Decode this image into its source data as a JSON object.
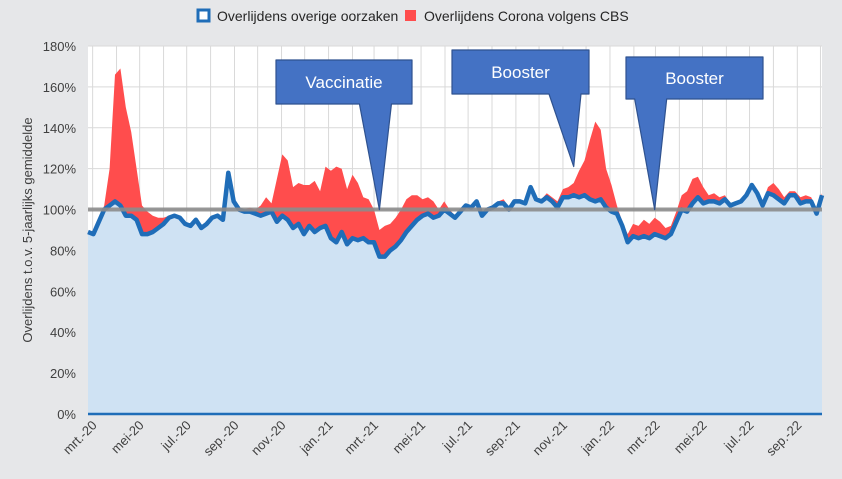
{
  "chart_data": {
    "type": "area",
    "ylabel": "Overlijdens t.o.v. 5-jaarlijks gemiddelde",
    "y_tick_labels": [
      "0%",
      "20%",
      "40%",
      "60%",
      "80%",
      "100%",
      "120%",
      "140%",
      "160%",
      "180%"
    ],
    "y_tick_values": [
      0,
      20,
      40,
      60,
      80,
      100,
      120,
      140,
      160,
      180
    ],
    "ylim": [
      0,
      180
    ],
    "y_unit": "%",
    "x_tick_labels": [
      "mrt.-20",
      "mei-20",
      "jul.-20",
      "sep.-20",
      "nov.-20",
      "jan.-21",
      "mrt.-21",
      "mei-21",
      "jul.-21",
      "sep.-21",
      "nov.-21",
      "jan.-22",
      "mrt.-22",
      "mei-22",
      "jul.-22",
      "sep.-22"
    ],
    "xlim": [
      "2020-02-24",
      "2022-10-03"
    ],
    "reference_line": 100,
    "grid": true,
    "legend_position": "top",
    "colors": {
      "other_causes_line": "#1f6db8",
      "other_causes_fill": "#cfe2f3",
      "corona_fill": "#ff4d4d",
      "reference_line": "#8c8c8c",
      "plot_background": "#ffffff",
      "page_background": "#e6e7e9",
      "callout_fill": "#4472c4",
      "gridline": "#d9d9d9"
    },
    "series": [
      {
        "name": "Overlijdens overige oorzaken",
        "style": "line with light-blue area",
        "x": [
          "2020-02-24",
          "2020-03-02",
          "2020-03-09",
          "2020-03-16",
          "2020-03-23",
          "2020-03-30",
          "2020-04-06",
          "2020-04-13",
          "2020-04-20",
          "2020-04-27",
          "2020-05-04",
          "2020-05-11",
          "2020-05-18",
          "2020-05-25",
          "2020-06-01",
          "2020-06-08",
          "2020-06-15",
          "2020-06-22",
          "2020-06-29",
          "2020-07-06",
          "2020-07-13",
          "2020-07-20",
          "2020-07-27",
          "2020-08-03",
          "2020-08-10",
          "2020-08-17",
          "2020-08-24",
          "2020-08-31",
          "2020-09-07",
          "2020-09-14",
          "2020-09-21",
          "2020-09-28",
          "2020-10-05",
          "2020-10-12",
          "2020-10-19",
          "2020-10-26",
          "2020-11-02",
          "2020-11-09",
          "2020-11-16",
          "2020-11-23",
          "2020-11-30",
          "2020-12-07",
          "2020-12-14",
          "2020-12-21",
          "2020-12-28",
          "2021-01-04",
          "2021-01-11",
          "2021-01-18",
          "2021-01-25",
          "2021-02-01",
          "2021-02-08",
          "2021-02-15",
          "2021-02-22",
          "2021-03-01",
          "2021-03-08",
          "2021-03-15",
          "2021-03-22",
          "2021-03-29",
          "2021-04-05",
          "2021-04-12",
          "2021-04-19",
          "2021-04-26",
          "2021-05-03",
          "2021-05-10",
          "2021-05-17",
          "2021-05-24",
          "2021-05-31",
          "2021-06-07",
          "2021-06-14",
          "2021-06-21",
          "2021-06-28",
          "2021-07-05",
          "2021-07-12",
          "2021-07-19",
          "2021-07-26",
          "2021-08-02",
          "2021-08-09",
          "2021-08-16",
          "2021-08-23",
          "2021-08-30",
          "2021-09-06",
          "2021-09-13",
          "2021-09-20",
          "2021-09-27",
          "2021-10-04",
          "2021-10-11",
          "2021-10-18",
          "2021-10-25",
          "2021-11-01",
          "2021-11-08",
          "2021-11-15",
          "2021-11-22",
          "2021-11-29",
          "2021-12-06",
          "2021-12-13",
          "2021-12-20",
          "2021-12-27",
          "2022-01-03",
          "2022-01-10",
          "2022-01-17",
          "2022-01-24",
          "2022-01-31",
          "2022-02-07",
          "2022-02-14",
          "2022-02-21",
          "2022-02-28",
          "2022-03-07",
          "2022-03-14",
          "2022-03-21",
          "2022-03-28",
          "2022-04-04",
          "2022-04-11",
          "2022-04-18",
          "2022-04-25",
          "2022-05-02",
          "2022-05-09",
          "2022-05-16",
          "2022-05-23",
          "2022-05-30",
          "2022-06-06",
          "2022-06-13",
          "2022-06-20",
          "2022-06-27",
          "2022-07-04",
          "2022-07-11",
          "2022-07-18",
          "2022-07-25",
          "2022-08-01",
          "2022-08-08",
          "2022-08-15",
          "2022-08-22",
          "2022-08-29",
          "2022-09-05",
          "2022-09-12",
          "2022-09-19",
          "2022-09-26",
          "2022-10-03"
        ],
        "values": [
          89,
          88,
          94,
          100,
          102,
          104,
          102,
          97,
          97,
          95,
          88,
          88,
          89,
          91,
          93,
          96,
          97,
          96,
          93,
          92,
          95,
          91,
          93,
          96,
          97,
          95,
          118,
          104,
          100,
          99,
          99,
          98,
          97,
          98,
          99,
          94,
          97,
          95,
          91,
          93,
          88,
          92,
          89,
          91,
          92,
          86,
          84,
          89,
          83,
          86,
          85,
          86,
          84,
          84,
          77,
          77,
          80,
          82,
          85,
          89,
          92,
          95,
          97,
          98,
          96,
          97,
          100,
          98,
          96,
          99,
          102,
          101,
          104,
          97,
          100,
          101,
          103,
          103,
          100,
          104,
          104,
          103,
          111,
          105,
          104,
          106,
          104,
          101,
          106,
          106,
          107,
          106,
          107,
          105,
          104,
          105,
          101,
          99,
          98,
          92,
          84,
          87,
          86,
          87,
          86,
          88,
          87,
          86,
          88,
          94,
          100,
          99,
          103,
          106,
          103,
          104,
          104,
          103,
          105,
          102,
          103,
          104,
          107,
          112,
          108,
          102,
          108,
          107,
          105,
          103,
          107,
          107,
          103,
          104,
          104,
          98,
          107
        ]
      },
      {
        "name": "Overlijdens Corona volgens CBS",
        "style": "red area stacked on other causes",
        "x": [
          "2020-02-24",
          "2020-03-02",
          "2020-03-09",
          "2020-03-16",
          "2020-03-23",
          "2020-03-30",
          "2020-04-06",
          "2020-04-13",
          "2020-04-20",
          "2020-04-27",
          "2020-05-04",
          "2020-05-11",
          "2020-05-18",
          "2020-05-25",
          "2020-06-01",
          "2020-06-08",
          "2020-06-15",
          "2020-06-22",
          "2020-06-29",
          "2020-07-06",
          "2020-07-13",
          "2020-07-20",
          "2020-07-27",
          "2020-08-03",
          "2020-08-10",
          "2020-08-17",
          "2020-08-24",
          "2020-08-31",
          "2020-09-07",
          "2020-09-14",
          "2020-09-21",
          "2020-09-28",
          "2020-10-05",
          "2020-10-12",
          "2020-10-19",
          "2020-10-26",
          "2020-11-02",
          "2020-11-09",
          "2020-11-16",
          "2020-11-23",
          "2020-11-30",
          "2020-12-07",
          "2020-12-14",
          "2020-12-21",
          "2020-12-28",
          "2021-01-04",
          "2021-01-11",
          "2021-01-18",
          "2021-01-25",
          "2021-02-01",
          "2021-02-08",
          "2021-02-15",
          "2021-02-22",
          "2021-03-01",
          "2021-03-08",
          "2021-03-15",
          "2021-03-22",
          "2021-03-29",
          "2021-04-05",
          "2021-04-12",
          "2021-04-19",
          "2021-04-26",
          "2021-05-03",
          "2021-05-10",
          "2021-05-17",
          "2021-05-24",
          "2021-05-31",
          "2021-06-07",
          "2021-06-14",
          "2021-06-21",
          "2021-06-28",
          "2021-07-05",
          "2021-07-12",
          "2021-07-19",
          "2021-07-26",
          "2021-08-02",
          "2021-08-09",
          "2021-08-16",
          "2021-08-23",
          "2021-08-30",
          "2021-09-06",
          "2021-09-13",
          "2021-09-20",
          "2021-09-27",
          "2021-10-04",
          "2021-10-11",
          "2021-10-18",
          "2021-10-25",
          "2021-11-01",
          "2021-11-08",
          "2021-11-15",
          "2021-11-22",
          "2021-11-29",
          "2021-12-06",
          "2021-12-13",
          "2021-12-20",
          "2021-12-27",
          "2022-01-03",
          "2022-01-10",
          "2022-01-17",
          "2022-01-24",
          "2022-01-31",
          "2022-02-07",
          "2022-02-14",
          "2022-02-21",
          "2022-02-28",
          "2022-03-07",
          "2022-03-14",
          "2022-03-21",
          "2022-03-28",
          "2022-04-04",
          "2022-04-11",
          "2022-04-18",
          "2022-04-25",
          "2022-05-02",
          "2022-05-09",
          "2022-05-16",
          "2022-05-23",
          "2022-05-30",
          "2022-06-06",
          "2022-06-13",
          "2022-06-20",
          "2022-06-27",
          "2022-07-04",
          "2022-07-11",
          "2022-07-18",
          "2022-07-25",
          "2022-08-01",
          "2022-08-08",
          "2022-08-15",
          "2022-08-22",
          "2022-08-29",
          "2022-09-05",
          "2022-09-12",
          "2022-09-19",
          "2022-09-26",
          "2022-10-03"
        ],
        "total_values": [
          89,
          88,
          95,
          102,
          120,
          166,
          169,
          150,
          138,
          120,
          102,
          99,
          97,
          96,
          96,
          97,
          98,
          96,
          93,
          92,
          95,
          91,
          93,
          96,
          97,
          95,
          118,
          104,
          101,
          100,
          101,
          100,
          102,
          106,
          103,
          115,
          127,
          124,
          111,
          113,
          112,
          112,
          114,
          109,
          121,
          119,
          121,
          120,
          110,
          117,
          113,
          106,
          105,
          100,
          90,
          92,
          93,
          96,
          100,
          105,
          107,
          107,
          105,
          106,
          104,
          100,
          104,
          100,
          97,
          100,
          103,
          102,
          104,
          98,
          101,
          101,
          104,
          105,
          101,
          105,
          105,
          104,
          112,
          106,
          105,
          108,
          106,
          104,
          110,
          111,
          113,
          119,
          124,
          134,
          143,
          139,
          120,
          112,
          102,
          94,
          88,
          93,
          92,
          95,
          93,
          96,
          94,
          91,
          92,
          99,
          107,
          109,
          115,
          116,
          111,
          107,
          108,
          106,
          107,
          103,
          104,
          105,
          108,
          113,
          109,
          104,
          111,
          113,
          110,
          106,
          109,
          109,
          106,
          107,
          106,
          100,
          108
        ]
      }
    ],
    "legend": [
      {
        "label": "Overlijdens overige oorzaken",
        "color": "#1f6db8"
      },
      {
        "label": "Overlijdens Corona volgens CBS",
        "color": "#ff4d4d"
      }
    ],
    "annotations": [
      {
        "text": "Vaccinatie",
        "x": "2021-03-08",
        "y": 100,
        "shape": "callout pointing to 100% line"
      },
      {
        "text": "Booster",
        "x": "2021-11-15",
        "y": 121,
        "shape": "callout pointing to data"
      },
      {
        "text": "Booster",
        "x": "2022-02-28",
        "y": 100,
        "shape": "callout pointing to 100% line"
      }
    ]
  }
}
